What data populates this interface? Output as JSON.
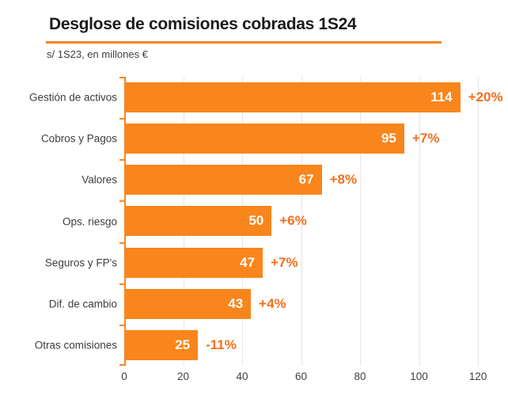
{
  "header": {
    "title": "Desglose de comisiones cobradas 1S24",
    "subtitle": "s/ 1S23, en millones €"
  },
  "colors": {
    "bar": "#F8861D",
    "accent_text": "#F3701E",
    "title_underline": "#F8861D",
    "gridline": "#E4E4E6",
    "value_label": "#FFFFFF"
  },
  "chart_data": {
    "type": "bar",
    "orientation": "horizontal",
    "title": "Desglose de comisiones cobradas 1S24",
    "subtitle": "s/ 1S23, en millones €",
    "categories": [
      "Gestión de activos",
      "Cobros y Pagos",
      "Valores",
      "Ops. riesgo",
      "Seguros y FP's",
      "Dif. de cambio",
      "Otras comisiones"
    ],
    "values": [
      114,
      95,
      67,
      50,
      47,
      43,
      25
    ],
    "change_labels": [
      "+20%",
      "+7%",
      "+8%",
      "+6%",
      "+7%",
      "+4%",
      "-11%"
    ],
    "xlabel": "",
    "ylabel": "",
    "xlim": [
      0,
      120
    ],
    "x_ticks": [
      0,
      20,
      40,
      60,
      80,
      100,
      120
    ],
    "grid": true,
    "legend": false,
    "value_labels_position": "inside-end",
    "change_labels_position": "outside-end"
  }
}
